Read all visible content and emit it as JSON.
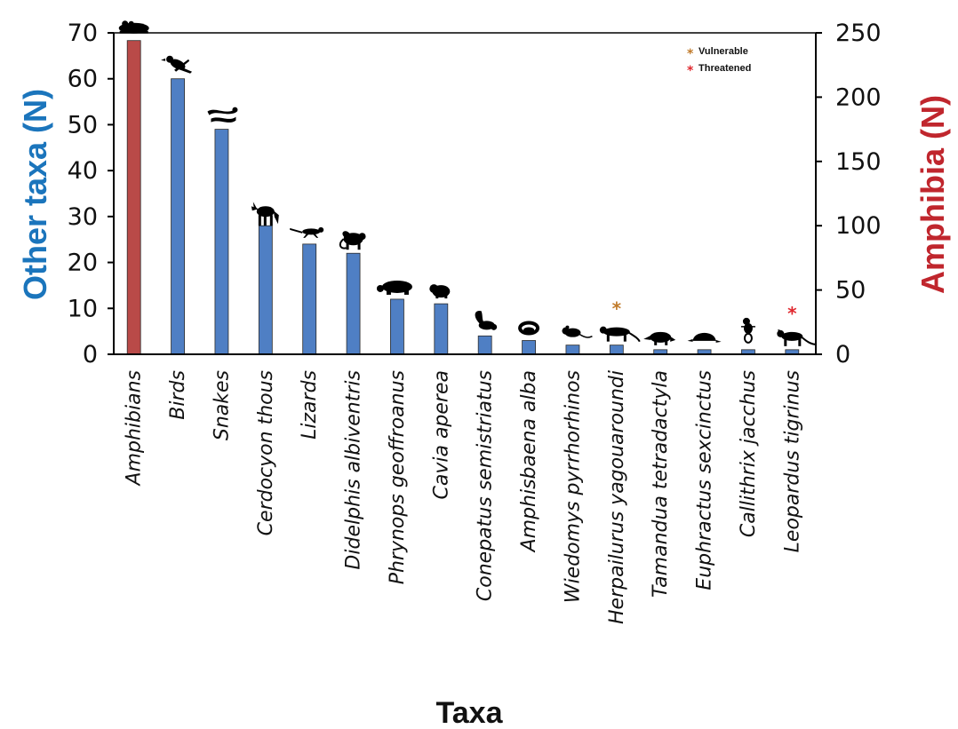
{
  "chart_data": {
    "type": "bar",
    "categories": [
      "Amphibians",
      "Birds",
      "Snakes",
      "Cerdocyon thous",
      "Lizards",
      "Didelphis albiventris",
      "Phrynops geoffroanus",
      "Cavia aperea",
      "Conepatus semistriatus",
      "Amphisbaena alba",
      "Wiedomys pyrrhorhinos",
      "Herpailurus yagouaroundi",
      "Tamandua tetradactyla",
      "Euphractus sexcinctus",
      "Callithrix jacchus",
      "Leopardus tigrinus"
    ],
    "series": [
      {
        "name": "Amphibia",
        "axis": "right",
        "color": "#b94a48",
        "values": [
          244,
          null,
          null,
          null,
          null,
          null,
          null,
          null,
          null,
          null,
          null,
          null,
          null,
          null,
          null,
          null
        ]
      },
      {
        "name": "Other taxa",
        "axis": "left",
        "color": "#4f7fc4",
        "values": [
          null,
          60,
          49,
          28,
          24,
          22,
          12,
          11,
          4,
          3,
          2,
          2,
          1,
          1,
          1,
          1
        ]
      }
    ],
    "xlabel": "Taxa",
    "ylabel": "Other taxa (N)",
    "y2label": "Amphibia (N)",
    "ylim": [
      0,
      70
    ],
    "y2lim": [
      0,
      250
    ],
    "yticks": [
      0,
      10,
      20,
      30,
      40,
      50,
      60,
      70
    ],
    "y2ticks": [
      0,
      50,
      100,
      150,
      200,
      250
    ],
    "legend": {
      "placement": "top-right",
      "items": [
        {
          "label": "Vulnerable",
          "color": "#c07a2a"
        },
        {
          "label": "Threatened",
          "color": "#e0282e"
        }
      ]
    },
    "status_markers": [
      {
        "category": "Herpailurus yagouaroundi",
        "status": "Vulnerable"
      },
      {
        "category": "Leopardus tigrinus",
        "status": "Threatened"
      }
    ],
    "ylabel_color": "#1b75bc",
    "y2label_color": "#c0262d",
    "icons": [
      "frog-silhouette-icon",
      "bird-silhouette-icon",
      "snake-silhouette-icon",
      "fox-silhouette-icon",
      "lizard-silhouette-icon",
      "opossum-silhouette-icon",
      "turtle-silhouette-icon",
      "guinea-pig-silhouette-icon",
      "skunk-silhouette-icon",
      "amphisbaena-silhouette-icon",
      "rodent-silhouette-icon",
      "jaguarundi-silhouette-icon",
      "anteater-silhouette-icon",
      "armadillo-silhouette-icon",
      "marmoset-silhouette-icon",
      "tiger-cat-silhouette-icon"
    ]
  }
}
